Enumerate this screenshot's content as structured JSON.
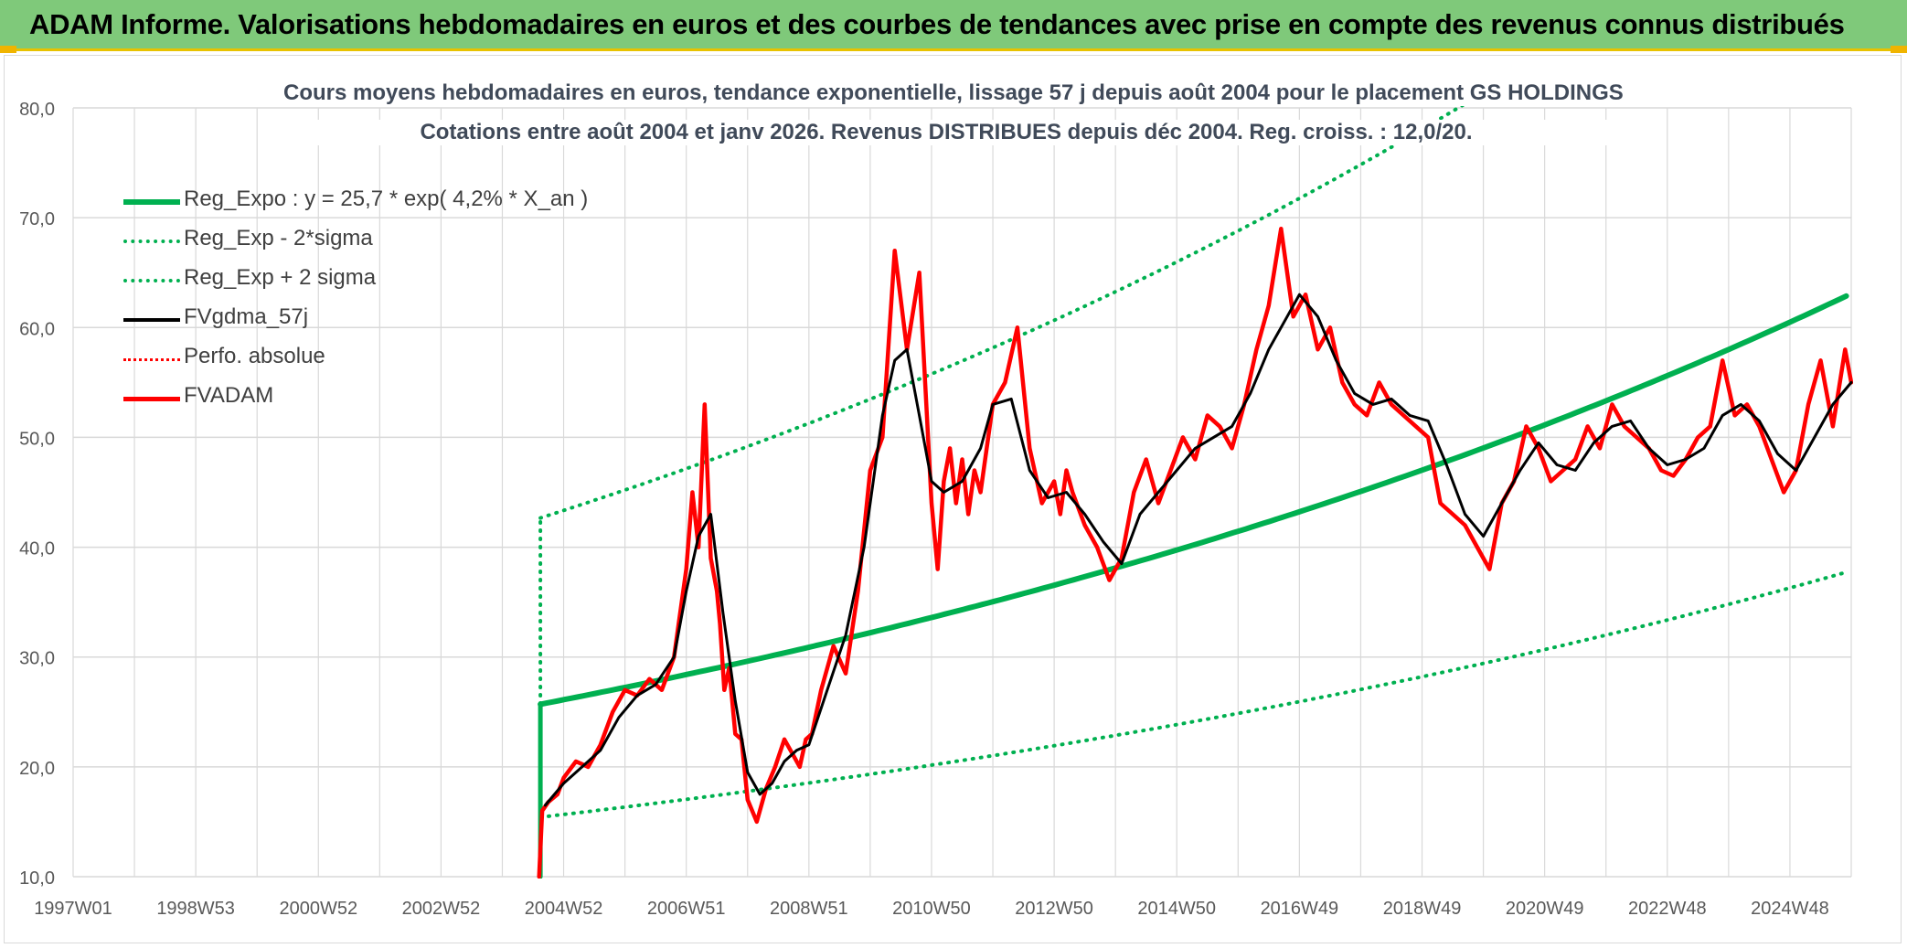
{
  "banner": {
    "title": "ADAM Informe. Valorisations hebdomadaires en euros et des courbes de tendances avec prise en compte des revenus connus distribués"
  },
  "colors": {
    "banner_bg": "#7fc97a",
    "green": "#00b050",
    "red": "#ff0000",
    "black": "#000000",
    "grid": "#d9d9d9",
    "axis_text": "#595959"
  },
  "chart_data": {
    "type": "line",
    "title": "Cours moyens hebdomadaires en euros, tendance exponentielle, lissage 57 j depuis août 2004 pour le placement GS HOLDINGS",
    "subtitle": "Cotations entre août 2004 et janv 2026. Revenus DISTRIBUES depuis déc 2004. Reg. croiss. : 12,0/20.",
    "xlabel": "",
    "ylabel": "",
    "x_range": [
      1997.0,
      2026.0
    ],
    "ylim": [
      10,
      80
    ],
    "y_ticks": [
      10,
      20,
      30,
      40,
      50,
      60,
      70,
      80
    ],
    "y_tick_labels": [
      "10,0",
      "20,0",
      "30,0",
      "40,0",
      "50,0",
      "60,0",
      "70,0",
      "80,0"
    ],
    "x_tick_labels": [
      "1997W01",
      "1998W53",
      "2000W52",
      "2002W52",
      "2004W52",
      "2006W51",
      "2008W51",
      "2010W50",
      "2012W50",
      "2014W50",
      "2016W49",
      "2018W49",
      "2020W49",
      "2022W48",
      "2024W48"
    ],
    "x_ticks": [
      1997.0,
      1999.0,
      2001.0,
      2003.0,
      2005.0,
      2007.0,
      2009.0,
      2011.0,
      2013.0,
      2015.0,
      2017.0,
      2019.0,
      2021.0,
      2023.0,
      2025.0
    ],
    "grid": true,
    "legend_position": "top-left",
    "legend": [
      {
        "label": "Reg_Expo : y = 25,7 * exp( 4,2% *  X_an )",
        "color": "#00b050",
        "style": "solid",
        "width": 6
      },
      {
        "label": "Reg_Exp - 2*sigma",
        "color": "#00b050",
        "style": "dotted",
        "width": 4
      },
      {
        "label": "Reg_Exp + 2 sigma",
        "color": "#00b050",
        "style": "dotted",
        "width": 4
      },
      {
        "label": "FVgdma_57j",
        "color": "#000000",
        "style": "solid",
        "width": 4
      },
      {
        "label": "Perfo. absolue",
        "color": "#ff0000",
        "style": "dotted",
        "width": 3
      },
      {
        "label": "FVADAM",
        "color": "#ff0000",
        "style": "solid",
        "width": 5
      }
    ],
    "regression": {
      "start_x": 2004.62,
      "end_x": 2026.0,
      "a": 25.7,
      "rate": 0.042,
      "upper_factor": 1.66,
      "lower_factor": 0.6
    },
    "series": [
      {
        "name": "FVADAM",
        "x": [
          2004.6,
          2004.65,
          2004.75,
          2004.9,
          2005.0,
          2005.2,
          2005.4,
          2005.6,
          2005.8,
          2006.0,
          2006.2,
          2006.4,
          2006.6,
          2006.8,
          2007.0,
          2007.1,
          2007.2,
          2007.3,
          2007.4,
          2007.5,
          2007.55,
          2007.62,
          2007.7,
          2007.8,
          2007.9,
          2008.0,
          2008.15,
          2008.3,
          2008.45,
          2008.6,
          2008.75,
          2008.85,
          2008.95,
          2009.05,
          2009.2,
          2009.4,
          2009.6,
          2009.8,
          2010.0,
          2010.2,
          2010.4,
          2010.6,
          2010.8,
          2011.0,
          2011.1,
          2011.2,
          2011.3,
          2011.4,
          2011.5,
          2011.6,
          2011.7,
          2011.8,
          2012.0,
          2012.2,
          2012.4,
          2012.6,
          2012.8,
          2013.0,
          2013.1,
          2013.2,
          2013.3,
          2013.5,
          2013.7,
          2013.9,
          2014.1,
          2014.3,
          2014.5,
          2014.7,
          2014.9,
          2015.1,
          2015.3,
          2015.5,
          2015.7,
          2015.9,
          2016.1,
          2016.3,
          2016.5,
          2016.7,
          2016.9,
          2017.1,
          2017.3,
          2017.5,
          2017.7,
          2017.9,
          2018.1,
          2018.3,
          2018.5,
          2018.7,
          2018.9,
          2019.1,
          2019.3,
          2019.5,
          2019.7,
          2019.9,
          2020.1,
          2020.3,
          2020.5,
          2020.7,
          2020.9,
          2021.1,
          2021.3,
          2021.5,
          2021.7,
          2021.9,
          2022.1,
          2022.3,
          2022.5,
          2022.7,
          2022.9,
          2023.1,
          2023.3,
          2023.5,
          2023.7,
          2023.9,
          2024.1,
          2024.3,
          2024.5,
          2024.7,
          2024.9,
          2025.1,
          2025.3,
          2025.5,
          2025.7,
          2025.9,
          2026.0
        ],
        "values": [
          10.0,
          16.0,
          16.8,
          17.5,
          19.0,
          20.5,
          20.0,
          22.0,
          25.0,
          27.0,
          26.5,
          28.0,
          27.0,
          30.0,
          38.0,
          45.0,
          40.0,
          53.0,
          39.0,
          36.0,
          33.0,
          27.0,
          29.0,
          23.0,
          22.5,
          17.0,
          15.0,
          18.0,
          20.0,
          22.5,
          21.0,
          20.0,
          22.5,
          23.0,
          27.0,
          31.0,
          28.5,
          36.0,
          47.0,
          50.0,
          67.0,
          58.0,
          65.0,
          44.0,
          38.0,
          46.0,
          49.0,
          44.0,
          48.0,
          43.0,
          47.0,
          45.0,
          53.0,
          55.0,
          60.0,
          49.0,
          44.0,
          46.0,
          43.0,
          47.0,
          45.0,
          42.0,
          40.0,
          37.0,
          39.0,
          45.0,
          48.0,
          44.0,
          47.0,
          50.0,
          48.0,
          52.0,
          51.0,
          49.0,
          53.0,
          58.0,
          62.0,
          69.0,
          61.0,
          63.0,
          58.0,
          60.0,
          55.0,
          53.0,
          52.0,
          55.0,
          53.0,
          52.0,
          51.0,
          50.0,
          44.0,
          43.0,
          42.0,
          40.0,
          38.0,
          44.0,
          46.0,
          51.0,
          49.0,
          46.0,
          47.0,
          48.0,
          51.0,
          49.0,
          53.0,
          51.0,
          50.0,
          49.0,
          47.0,
          46.5,
          48.0,
          50.0,
          51.0,
          57.0,
          52.0,
          53.0,
          51.0,
          48.0,
          45.0,
          47.0,
          53.0,
          57.0,
          51.0,
          58.0,
          55.0
        ]
      },
      {
        "name": "FVgdma_57j",
        "x": [
          2004.7,
          2005.0,
          2005.3,
          2005.6,
          2005.9,
          2006.2,
          2006.5,
          2006.8,
          2007.0,
          2007.2,
          2007.4,
          2007.6,
          2007.8,
          2008.0,
          2008.2,
          2008.4,
          2008.6,
          2008.8,
          2009.0,
          2009.3,
          2009.6,
          2009.9,
          2010.2,
          2010.4,
          2010.6,
          2010.8,
          2011.0,
          2011.2,
          2011.5,
          2011.8,
          2012.0,
          2012.3,
          2012.6,
          2012.9,
          2013.2,
          2013.5,
          2013.8,
          2014.1,
          2014.4,
          2014.7,
          2015.0,
          2015.3,
          2015.6,
          2015.9,
          2016.2,
          2016.5,
          2016.8,
          2017.0,
          2017.3,
          2017.6,
          2017.9,
          2018.2,
          2018.5,
          2018.8,
          2019.1,
          2019.4,
          2019.7,
          2020.0,
          2020.3,
          2020.6,
          2020.9,
          2021.2,
          2021.5,
          2021.8,
          2022.1,
          2022.4,
          2022.7,
          2023.0,
          2023.3,
          2023.6,
          2023.9,
          2024.2,
          2024.5,
          2024.8,
          2025.1,
          2025.4,
          2025.7,
          2026.0
        ],
        "values": [
          16.5,
          18.5,
          20.0,
          21.5,
          24.5,
          26.5,
          27.5,
          30.0,
          36.0,
          41.0,
          43.0,
          34.0,
          26.0,
          19.5,
          17.5,
          18.5,
          20.5,
          21.5,
          22.0,
          27.0,
          32.0,
          40.0,
          52.0,
          57.0,
          58.0,
          52.0,
          46.0,
          45.0,
          46.0,
          49.0,
          53.0,
          53.5,
          47.0,
          44.5,
          45.0,
          43.0,
          40.5,
          38.5,
          43.0,
          45.0,
          47.0,
          49.0,
          50.0,
          51.0,
          54.0,
          58.0,
          61.0,
          63.0,
          61.0,
          57.0,
          54.0,
          53.0,
          53.5,
          52.0,
          51.5,
          47.5,
          43.0,
          41.0,
          44.0,
          47.0,
          49.5,
          47.5,
          47.0,
          49.5,
          51.0,
          51.5,
          49.0,
          47.5,
          48.0,
          49.0,
          52.0,
          53.0,
          51.5,
          48.5,
          47.0,
          50.0,
          53.0,
          55.0
        ]
      }
    ]
  }
}
